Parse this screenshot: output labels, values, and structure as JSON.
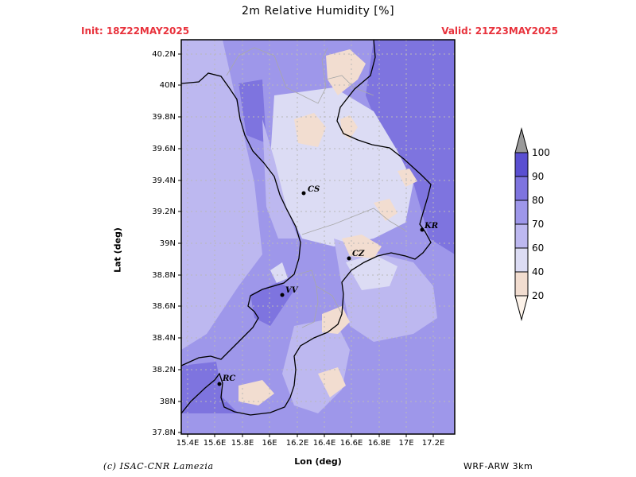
{
  "title": "2m Relative Humidity [%]",
  "init": "Init: 18Z22MAY2025",
  "valid": "Valid: 21Z23MAY2025",
  "y_axis_label": "Lat (deg)",
  "x_axis_label": "Lon (deg)",
  "credit": "(c) ISAC-CNR Lamezia",
  "model": "WRF-ARW 3km",
  "lat_ticks": [
    "40.2N",
    "40N",
    "39.8N",
    "39.6N",
    "39.4N",
    "39.2N",
    "39N",
    "38.8N",
    "38.6N",
    "38.4N",
    "38.2N",
    "38N",
    "37.8N"
  ],
  "lon_ticks": [
    "15.4E",
    "15.6E",
    "15.8E",
    "16E",
    "16.2E",
    "16.4E",
    "16.6E",
    "16.8E",
    "17E",
    "17.2E"
  ],
  "colorbar": {
    "levels": [
      "20",
      "40",
      "60",
      "70",
      "80",
      "90",
      "100"
    ],
    "colors": [
      "#fdf3ea",
      "#f2ddd0",
      "#dcdcf4",
      "#bdb8f0",
      "#9e97ea",
      "#7e74df",
      "#5a4fd1",
      "#9a9a9a"
    ]
  },
  "cities": [
    {
      "name": "CS"
    },
    {
      "name": "KR"
    },
    {
      "name": "CZ"
    },
    {
      "name": "VV"
    },
    {
      "name": "RC"
    }
  ]
}
